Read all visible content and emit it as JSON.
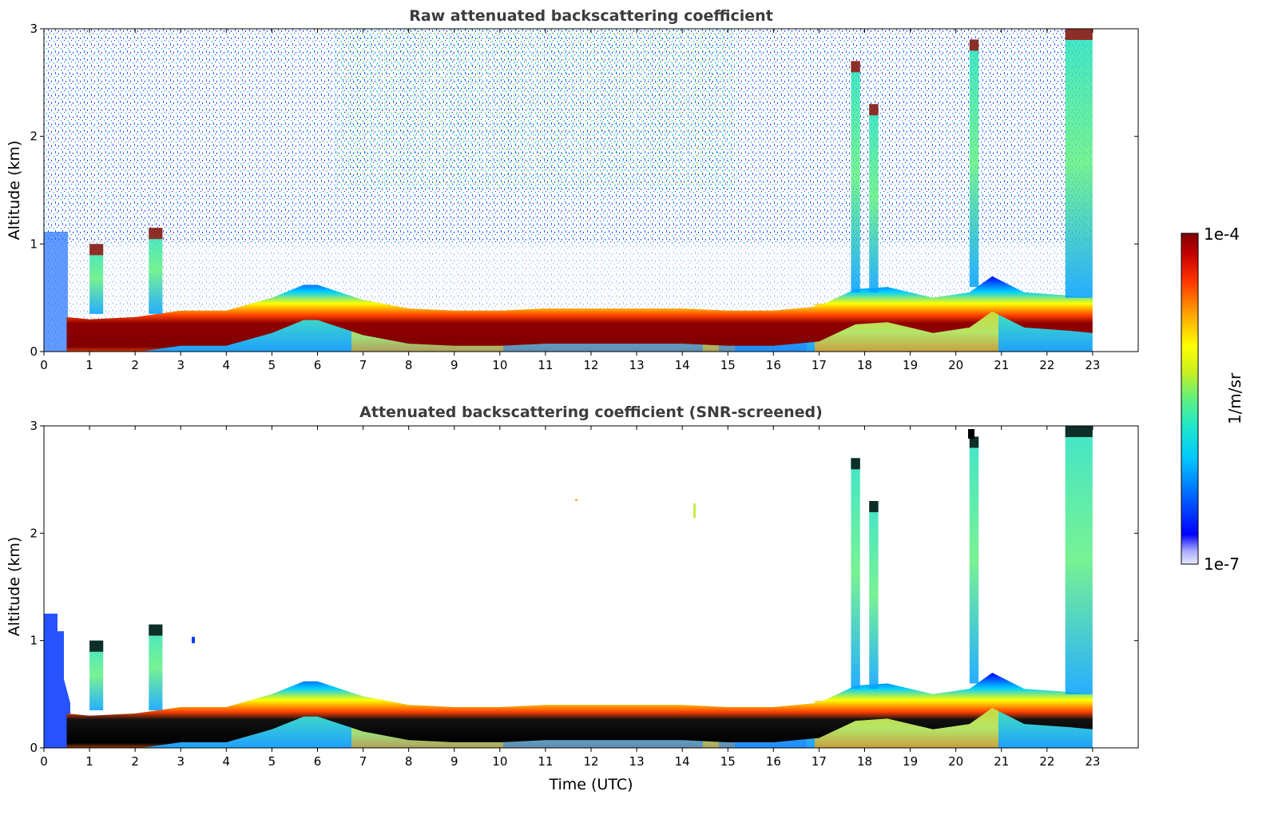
{
  "chart_data": [
    {
      "type": "heatmap",
      "title": "Raw attenuated backscattering coefficient",
      "ylabel": "Altitude (km)",
      "xlabel": "",
      "xlim": [
        0,
        24
      ],
      "ylim": [
        0,
        3
      ],
      "xticks": [
        "0",
        "1",
        "2",
        "3",
        "4",
        "5",
        "6",
        "7",
        "8",
        "9",
        "10",
        "11",
        "12",
        "13",
        "14",
        "15",
        "16",
        "17",
        "18",
        "19",
        "20",
        "21",
        "22",
        "23"
      ],
      "yticks": [
        "0",
        "1",
        "2",
        "3"
      ],
      "data_extent_hours": [
        0,
        23
      ],
      "aerosol_layer_top_km": [
        [
          0.5,
          0.32
        ],
        [
          1,
          0.3
        ],
        [
          2,
          0.32
        ],
        [
          3,
          0.38
        ],
        [
          4,
          0.38
        ],
        [
          5,
          0.5
        ],
        [
          5.7,
          0.62
        ],
        [
          6,
          0.62
        ],
        [
          7,
          0.48
        ],
        [
          8,
          0.4
        ],
        [
          9,
          0.38
        ],
        [
          10,
          0.38
        ],
        [
          11,
          0.4
        ],
        [
          12,
          0.4
        ],
        [
          13,
          0.4
        ],
        [
          14,
          0.4
        ],
        [
          15,
          0.38
        ],
        [
          16,
          0.38
        ],
        [
          17,
          0.42
        ],
        [
          17.8,
          0.58
        ],
        [
          18.5,
          0.6
        ],
        [
          19.5,
          0.5
        ],
        [
          20.3,
          0.55
        ],
        [
          20.8,
          0.7
        ],
        [
          21.5,
          0.55
        ],
        [
          22.5,
          0.52
        ],
        [
          23,
          0.5
        ]
      ],
      "cloud_features": [
        {
          "x": [
            1.0,
            1.3
          ],
          "y": [
            0.35,
            1.0
          ]
        },
        {
          "x": [
            2.3,
            2.6
          ],
          "y": [
            0.35,
            1.15
          ]
        },
        {
          "x": [
            17.7,
            17.9
          ],
          "y": [
            0.55,
            2.7
          ]
        },
        {
          "x": [
            18.1,
            18.3
          ],
          "y": [
            0.55,
            2.3
          ]
        },
        {
          "x": [
            20.3,
            20.5
          ],
          "y": [
            0.6,
            2.9
          ]
        },
        {
          "x": [
            22.4,
            23.0
          ],
          "y": [
            0.5,
            3.0
          ]
        }
      ],
      "signal_saturated": false
    },
    {
      "type": "heatmap",
      "title": "Attenuated backscattering coefficient (SNR-screened)",
      "ylabel": "Altitude (km)",
      "xlabel": "Time (UTC)",
      "xlim": [
        0,
        24
      ],
      "ylim": [
        0,
        3
      ],
      "xticks": [
        "0",
        "1",
        "2",
        "3",
        "4",
        "5",
        "6",
        "7",
        "8",
        "9",
        "10",
        "11",
        "12",
        "13",
        "14",
        "15",
        "16",
        "17",
        "18",
        "19",
        "20",
        "21",
        "22",
        "23"
      ],
      "yticks": [
        "0",
        "1",
        "2",
        "3"
      ],
      "data_extent_hours": [
        0,
        23
      ],
      "signal_saturated": true
    }
  ],
  "colorbar": {
    "label": "1/m/sr",
    "max_label": "1e-4",
    "min_label": "1e-7",
    "colors": [
      "#eaeaff",
      "#a8a8ff",
      "#0000ff",
      "#0060ff",
      "#00c8ff",
      "#20e8c8",
      "#60f080",
      "#c8f020",
      "#ffff00",
      "#ffa000",
      "#ff3000",
      "#c00000",
      "#800000"
    ]
  }
}
